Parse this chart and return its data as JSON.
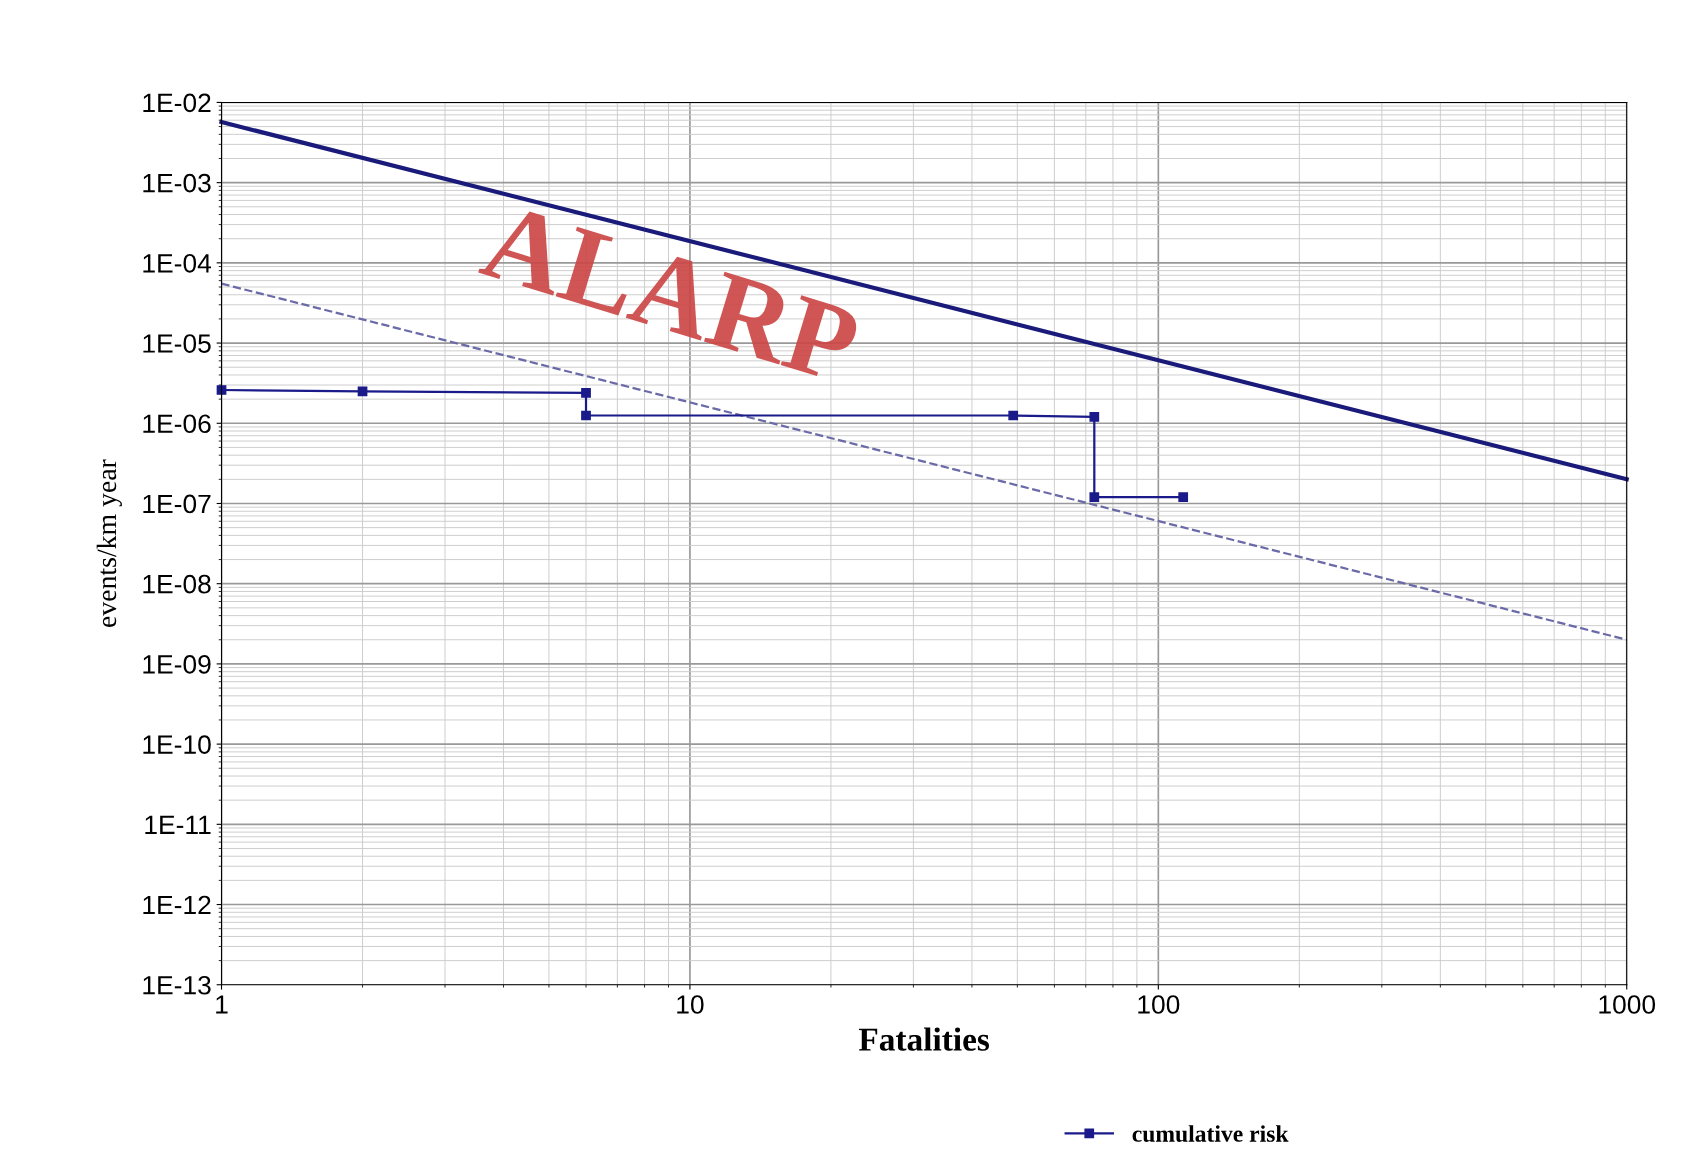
{
  "chart_data": {
    "type": "line",
    "xlabel": "Fatalities",
    "ylabel": "events/km year",
    "log": "xy",
    "xlim": [
      1,
      1000
    ],
    "ylim": [
      1e-13,
      0.01
    ],
    "xticks": [
      1,
      10,
      100,
      1000
    ],
    "yticks": [
      {
        "value": 1e-13,
        "label": "1E-13"
      },
      {
        "value": 1e-12,
        "label": "1E-12"
      },
      {
        "value": 1e-11,
        "label": "1E-11"
      },
      {
        "value": 1e-10,
        "label": "1E-10"
      },
      {
        "value": 1e-09,
        "label": "1E-09"
      },
      {
        "value": 1e-08,
        "label": "1E-08"
      },
      {
        "value": 1e-07,
        "label": "1E-07"
      },
      {
        "value": 1e-06,
        "label": "1E-06"
      },
      {
        "value": 1e-05,
        "label": "1E-05"
      },
      {
        "value": 0.0001,
        "label": "1E-04"
      },
      {
        "value": 0.001,
        "label": "1E-03"
      },
      {
        "value": 0.01,
        "label": "1E-02"
      }
    ],
    "grid": true,
    "legend": "bottom",
    "annotations": [
      "ALARP"
    ],
    "series": [
      {
        "color": "#1a1a7a",
        "x": [
          1,
          1000
        ],
        "values": [
          0.0057,
          2e-07
        ],
        "marker": "none",
        "line_style": "solid"
      },
      {
        "color": "#6a6aa8",
        "x": [
          1,
          1000
        ],
        "values": [
          5.5e-05,
          2e-09
        ],
        "marker": "none",
        "line_style": "dashed"
      },
      {
        "name": "cumulative risk",
        "color": "#1a1a8a",
        "x": [
          1,
          2,
          6,
          6,
          49,
          73,
          73,
          113
        ],
        "values": [
          2.6e-06,
          2.5e-06,
          2.4e-06,
          1.25e-06,
          1.25e-06,
          1.2e-06,
          1.2e-07,
          1.2e-07
        ],
        "marker": "square",
        "line_style": "solid"
      }
    ]
  }
}
